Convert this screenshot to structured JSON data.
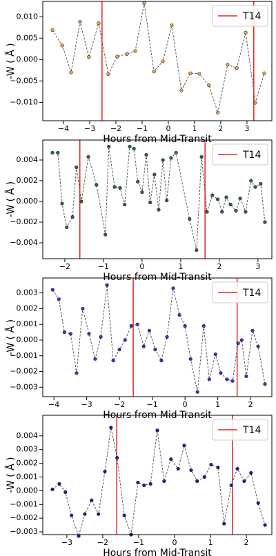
{
  "chart_data": [
    {
      "type": "line",
      "xlabel": "Hours from Mid-Transit",
      "ylabel": "-W ( Å )",
      "x": [
        -4.42,
        -4.05,
        -3.71,
        -3.37,
        -3.03,
        -2.66,
        -2.29,
        -1.95,
        -1.58,
        -1.26,
        -0.92,
        -0.55,
        -0.21,
        0.13,
        0.5,
        0.84,
        1.18,
        1.55,
        1.89,
        2.26,
        2.61,
        2.95,
        3.32,
        3.66
      ],
      "values": [
        0.0069,
        0.0033,
        -0.003,
        0.0088,
        0.0006,
        0.0085,
        -0.0034,
        0.0007,
        0.0013,
        0.002,
        0.0132,
        -0.0028,
        -0.0004,
        0.008,
        -0.0072,
        -0.0032,
        -0.0033,
        -0.006,
        -0.0124,
        -0.0012,
        -0.002,
        0.0063,
        -0.0101,
        -0.0032
      ],
      "color": "#f0a050",
      "line_color": "#555555",
      "xlim": [
        -4.79,
        3.95
      ],
      "ylim": [
        -0.0143,
        0.0136
      ],
      "xticks": [
        {
          "value": -4,
          "label": "−4"
        },
        {
          "value": -3,
          "label": "−3"
        },
        {
          "value": -2,
          "label": "−2"
        },
        {
          "value": -1,
          "label": "−1"
        },
        0,
        1,
        2,
        3
      ],
      "yticks": [
        {
          "value": -0.01,
          "label": "−0.010"
        },
        {
          "value": -0.005,
          "label": "−0.005"
        },
        {
          "value": 0,
          "label": "0.000"
        },
        0.005,
        {
          "value": 0.01,
          "label": "0.010"
        }
      ],
      "vlines": {
        "name": "T14",
        "color": "#e8221e",
        "x": [
          -2.53,
          3.26
        ]
      },
      "legend": "upper right"
    },
    {
      "type": "line",
      "xlabel": "Hours from Mid-Transit",
      "ylabel": "-W ( Å )",
      "x": [
        -2.32,
        -2.18,
        -2.07,
        -1.95,
        -1.8,
        -1.7,
        -1.57,
        -1.39,
        -1.18,
        -0.95,
        -0.86,
        -0.71,
        -0.57,
        -0.45,
        -0.32,
        -0.21,
        -0.11,
        0,
        0.11,
        0.21,
        0.32,
        0.43,
        0.54,
        0.64,
        0.75,
        0.88,
        1.23,
        1.41,
        1.54,
        1.68,
        1.82,
        1.96,
        2.07,
        2.18,
        2.29,
        2.43,
        2.54,
        2.68,
        2.82,
        2.93,
        3.07,
        3.18
      ],
      "values": [
        0.0047,
        0.0047,
        -0.0002,
        -0.0025,
        -0.0015,
        0.0033,
        0,
        0.0043,
        0.0016,
        -0.0032,
        0.0053,
        0.0014,
        0.0013,
        -0.0003,
        0.0053,
        0.0051,
        0.0019,
        0.0009,
        0.0045,
        -0.0001,
        0.0026,
        -0.0008,
        0.004,
        0.0001,
        0.0042,
        0.0047,
        -0.0017,
        -0.0047,
        0.0043,
        -0.001,
        0.0006,
        0.0002,
        -0.001,
        0.0004,
        -0.0003,
        -0.0009,
        0.0003,
        -0.001,
        0.002,
        0.0014,
        0.0017,
        -0.002
      ],
      "color": "#2e6b34",
      "line_color": "#555555",
      "xlim": [
        -2.57,
        3.36
      ],
      "ylim": [
        -0.00553,
        0.00593
      ],
      "xticks": [
        {
          "value": -2,
          "label": "−2"
        },
        {
          "value": -1,
          "label": "−1"
        },
        0,
        1,
        2,
        3
      ],
      "yticks": [
        {
          "value": -0.004,
          "label": "−0.004"
        },
        {
          "value": -0.002,
          "label": "−0.002"
        },
        {
          "value": 0,
          "label": "0.000"
        },
        0.002,
        0.004
      ],
      "vlines": {
        "name": "T14",
        "color": "#e8221e",
        "x": [
          -1.61,
          1.63
        ]
      },
      "legend": "upper right"
    },
    {
      "type": "line",
      "xlabel": "Hours from Mid-Transit",
      "ylabel": "-W ( Å )",
      "x": [
        -4.04,
        -3.85,
        -3.68,
        -3.49,
        -3.31,
        -3.12,
        -2.93,
        -2.74,
        -2.57,
        -2.38,
        -2.19,
        -2.0,
        -1.83,
        -1.64,
        -1.45,
        -1.26,
        -1.09,
        -0.91,
        -0.72,
        -0.55,
        -0.36,
        -0.17,
        0,
        0.17,
        0.38,
        0.57,
        0.74,
        0.93,
        1.09,
        1.28,
        1.45,
        1.62,
        1.73,
        1.87,
        2.06,
        2.23,
        2.44
      ],
      "values": [
        0.0032,
        0.0026,
        0.0005,
        0.0004,
        -0.0021,
        0.002,
        0.0004,
        -0.0012,
        0.0002,
        0.0035,
        -0.0013,
        -0.0006,
        0,
        0.0009,
        0.001,
        -0.0004,
        0.0006,
        -0.0006,
        -0.0013,
        0.0002,
        0.0033,
        0.0016,
        0.0009,
        -0.0012,
        -0.0033,
        0.0009,
        -0.0025,
        -0.0009,
        -0.0021,
        -0.0025,
        -0.0026,
        -0.0002,
        0,
        -0.0023,
        0.0006,
        -0.0004,
        -0.0028
      ],
      "color": "#2a3fc0",
      "line_color": "#555555",
      "xlim": [
        -4.34,
        2.65
      ],
      "ylim": [
        -0.0036,
        0.00395
      ],
      "xticks": [
        {
          "value": -4,
          "label": "−4"
        },
        {
          "value": -3,
          "label": "−3"
        },
        {
          "value": -2,
          "label": "−2"
        },
        {
          "value": -1,
          "label": "−1"
        },
        0,
        1,
        2
      ],
      "yticks": [
        {
          "value": -0.003,
          "label": "−0.003"
        },
        {
          "value": -0.002,
          "label": "−0.002"
        },
        {
          "value": -0.001,
          "label": "−0.001"
        },
        {
          "value": 0,
          "label": "0.000"
        },
        0.001,
        0.002,
        0.003
      ],
      "vlines": {
        "name": "T14",
        "color": "#e8221e",
        "x": [
          -1.58,
          1.59
        ]
      },
      "legend": "upper right"
    },
    {
      "type": "line",
      "xlabel": "Hours from Mid-Transit",
      "ylabel": "-W ( Å )",
      "x": [
        -3.4,
        -3.21,
        -3.04,
        -2.87,
        -2.67,
        -2.5,
        -2.31,
        -2.12,
        -1.94,
        -1.77,
        -1.6,
        -1.4,
        -1.21,
        -1.02,
        -0.85,
        -0.67,
        -0.48,
        -0.29,
        -0.1,
        0.1,
        0.27,
        0.46,
        0.63,
        0.83,
        1.02,
        1.21,
        1.38,
        1.58,
        1.75,
        1.94,
        2.13,
        2.33,
        2.52
      ],
      "values": [
        0.0001,
        0.0005,
        -0.0001,
        -0.0018,
        -0.0033,
        -0.0017,
        -0.0007,
        -0.0017,
        0.0014,
        0.0046,
        0.0024,
        -0.0018,
        -0.0032,
        0.0006,
        0.0004,
        0.0005,
        0.0044,
        0.0007,
        0.0023,
        0.0016,
        0.0033,
        0.0015,
        0.0007,
        0.001,
        0.0019,
        0.0017,
        -0.0024,
        0.0004,
        0.0016,
        0.0007,
        0.0013,
        -0.0009,
        -0.0025
      ],
      "color": "#1e1e8e",
      "line_color": "#555555",
      "xlim": [
        -3.67,
        2.71
      ],
      "ylim": [
        -0.0032,
        0.0055
      ],
      "xticks": [
        {
          "value": -3,
          "label": "−3"
        },
        {
          "value": -2,
          "label": "−2"
        },
        {
          "value": -1,
          "label": "−1"
        },
        0,
        1,
        2
      ],
      "yticks": [
        {
          "value": -0.003,
          "label": "−0.003"
        },
        {
          "value": -0.002,
          "label": "−0.002"
        },
        {
          "value": -0.001,
          "label": "−0.001"
        },
        {
          "value": 0,
          "label": "0.000"
        },
        0.001,
        0.002,
        0.003,
        0.004
      ],
      "vlines": {
        "name": "T14",
        "color": "#e8221e",
        "x": [
          -1.61,
          1.61
        ]
      },
      "legend": "upper right"
    }
  ]
}
